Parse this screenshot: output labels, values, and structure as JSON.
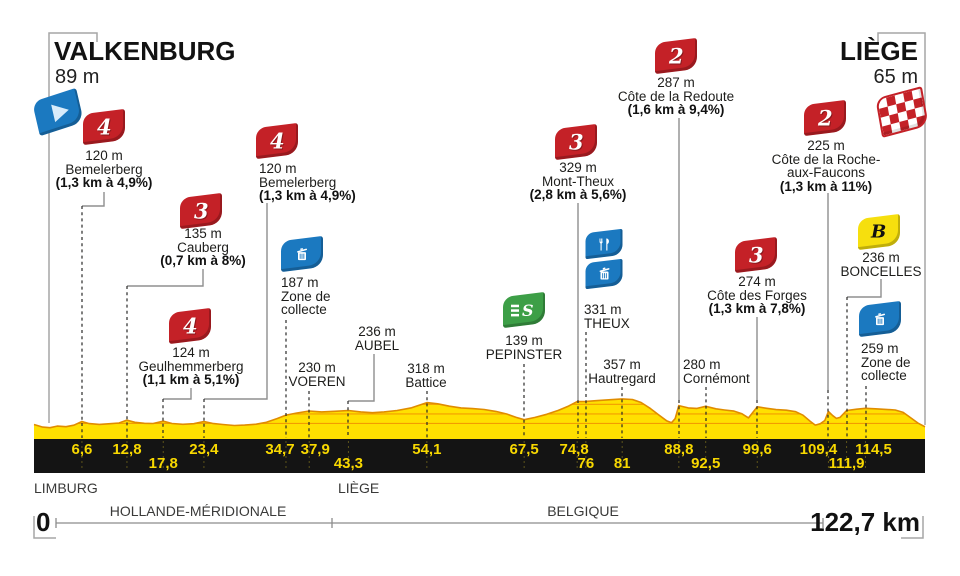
{
  "stage": {
    "start": {
      "name": "VALKENBURG",
      "elevation": "89 m"
    },
    "finish": {
      "name": "LIÈGE",
      "elevation": "65 m"
    },
    "origin_label": "0",
    "distance_label": "122,7 km"
  },
  "regions": [
    {
      "name": "LIMBURG"
    },
    {
      "name": "LIÈGE"
    }
  ],
  "countries": [
    {
      "name": "HOLLANDE-MÉRIDIONALE"
    },
    {
      "name": "BELGIQUE"
    }
  ],
  "colors": {
    "profile_yellow": "#ffe000",
    "profile_outline_orange": "#e08c00",
    "contour_orange": "#f39c00",
    "strip_black": "#141414",
    "km_text_yellow": "#f8d800",
    "climb_red": "#c42127",
    "info_blue": "#1b79c0",
    "sprint_green": "#3d9f47",
    "bonus_yellow": "#f6df0e"
  },
  "waypoints": [
    {
      "id": "start",
      "type": "start",
      "icon": "start-flag-icon",
      "km": 0,
      "km_label": "0"
    },
    {
      "id": "bemelerberg-1",
      "type": "climb",
      "category": "4",
      "km": 6.6,
      "km_label": "6,6",
      "lines": [
        "120 m",
        "Bemelerberg"
      ],
      "detail": "(1,3 km à 4,9%)"
    },
    {
      "id": "cauberg",
      "type": "climb",
      "category": "3",
      "km": 12.8,
      "km_label": "12,8",
      "lines": [
        "135 m",
        "Cauberg"
      ],
      "detail": "(0,7 km à 8%)"
    },
    {
      "id": "geulhemmerberg",
      "type": "climb",
      "category": "4",
      "km": 17.8,
      "km_label": "17,8",
      "lines": [
        "124 m",
        "Geulhemmerberg"
      ],
      "detail": "(1,1 km à 5,1%)"
    },
    {
      "id": "bemelerberg-2",
      "type": "climb",
      "category": "4",
      "km": 23.4,
      "km_label": "23,4",
      "lines": [
        "120 m",
        "Bemelerberg"
      ],
      "detail": "(1,3 km à 4,9%)"
    },
    {
      "id": "zone-collecte-1",
      "type": "collect",
      "icon": "trash-icon",
      "km": 34.7,
      "km_label": "34,7",
      "lines": [
        "187 m",
        "Zone de",
        "collecte"
      ]
    },
    {
      "id": "voeren",
      "type": "town",
      "km": 37.9,
      "km_label": "37,9",
      "lines": [
        "230 m",
        "VOEREN"
      ]
    },
    {
      "id": "aubel",
      "type": "town",
      "km": 43.3,
      "km_label": "43,3",
      "lines": [
        "236 m",
        "AUBEL"
      ]
    },
    {
      "id": "battice",
      "type": "town",
      "km": 54.1,
      "km_label": "54,1",
      "lines": [
        "318 m",
        "Battice"
      ]
    },
    {
      "id": "pepinster",
      "type": "sprint",
      "icon": "sprint-icon",
      "letter": "S",
      "km": 67.5,
      "km_label": "67,5",
      "lines": [
        "139 m",
        "PEPINSTER"
      ]
    },
    {
      "id": "mont-theux",
      "type": "climb",
      "category": "3",
      "km": 74.8,
      "km_label": "74,8",
      "lines": [
        "329 m",
        "Mont-Theux"
      ],
      "detail": "(2,8 km à 5,6%)"
    },
    {
      "id": "theux",
      "type": "feed",
      "icons": [
        "restaurant-icon",
        "trash-icon"
      ],
      "km": 76,
      "km_label": "76",
      "lines": [
        "331 m",
        "THEUX"
      ]
    },
    {
      "id": "hautregard",
      "type": "town",
      "km": 81,
      "km_label": "81",
      "lines": [
        "357 m",
        "Hautregard"
      ]
    },
    {
      "id": "cote-de-la-redoute",
      "type": "climb",
      "category": "2",
      "km": 88.8,
      "km_label": "88,8",
      "lines": [
        "287 m",
        "Côte de la Redoute"
      ],
      "detail": "(1,6 km à 9,4%)"
    },
    {
      "id": "cornemont",
      "type": "town",
      "km": 92.5,
      "km_label": "92,5",
      "lines": [
        "280 m",
        "Cornémont"
      ]
    },
    {
      "id": "cote-des-forges",
      "type": "climb",
      "category": "3",
      "km": 99.6,
      "km_label": "99,6",
      "lines": [
        "274 m",
        "Côte des Forges"
      ],
      "detail": "(1,3 km à 7,8%)"
    },
    {
      "id": "cote-de-la-roche-aux-faucons",
      "type": "climb",
      "category": "2",
      "km": 109.4,
      "km_label": "109,4",
      "lines": [
        "225 m",
        "Côte de la Roche-",
        "aux-Faucons"
      ],
      "detail": "(1,3 km à 11%)"
    },
    {
      "id": "boncelles",
      "type": "bonus",
      "letter": "B",
      "km": 111.9,
      "km_label": "111,9",
      "lines": [
        "236 m",
        "BONCELLES"
      ]
    },
    {
      "id": "zone-collecte-2",
      "type": "collect",
      "icon": "trash-icon",
      "km": 114.5,
      "km_label": "114,5",
      "lines": [
        "259 m",
        "Zone de",
        "collecte"
      ]
    },
    {
      "id": "finish",
      "type": "finish",
      "icon": "checkered-flag-icon",
      "km": 122.7,
      "km_label": "122,7"
    }
  ],
  "chart_data": {
    "type": "area",
    "title": "Valkenburg - Liège stage elevation profile",
    "xlabel": "km",
    "ylabel": "m",
    "x_range": [
      0,
      122.7
    ],
    "total_km": 122.7,
    "contour_lines_m": [
      100,
      200,
      300
    ],
    "start_elevation_m": 89,
    "finish_elevation_m": 65,
    "max_elevation_m": 357,
    "points": [
      [
        0,
        89
      ],
      [
        1.2,
        62
      ],
      [
        2.2,
        56
      ],
      [
        3.2,
        72
      ],
      [
        4.4,
        66
      ],
      [
        5.5,
        82
      ],
      [
        6.6,
        120
      ],
      [
        7.6,
        98
      ],
      [
        9,
        90
      ],
      [
        10.5,
        97
      ],
      [
        11.7,
        105
      ],
      [
        12.8,
        135
      ],
      [
        13.9,
        112
      ],
      [
        15.2,
        102
      ],
      [
        16.4,
        99
      ],
      [
        17.8,
        124
      ],
      [
        19,
        99
      ],
      [
        20.5,
        91
      ],
      [
        22,
        97
      ],
      [
        23.4,
        120
      ],
      [
        24.6,
        101
      ],
      [
        26,
        89
      ],
      [
        27.6,
        79
      ],
      [
        29,
        83
      ],
      [
        30.6,
        92
      ],
      [
        32,
        112
      ],
      [
        33.5,
        152
      ],
      [
        34.7,
        187
      ],
      [
        36.2,
        209
      ],
      [
        37.9,
        230
      ],
      [
        39.6,
        221
      ],
      [
        41.4,
        227
      ],
      [
        43.3,
        236
      ],
      [
        45,
        221
      ],
      [
        46.6,
        213
      ],
      [
        48.2,
        221
      ],
      [
        50,
        236
      ],
      [
        52,
        264
      ],
      [
        54.1,
        318
      ],
      [
        55.6,
        306
      ],
      [
        57.2,
        281
      ],
      [
        58.8,
        263
      ],
      [
        60.4,
        255
      ],
      [
        62,
        246
      ],
      [
        63.6,
        226
      ],
      [
        65.1,
        199
      ],
      [
        66.4,
        163
      ],
      [
        67.5,
        139
      ],
      [
        69,
        163
      ],
      [
        70.6,
        196
      ],
      [
        72.2,
        237
      ],
      [
        73.6,
        282
      ],
      [
        74.8,
        329
      ],
      [
        76,
        331
      ],
      [
        77.6,
        339
      ],
      [
        79.4,
        349
      ],
      [
        81,
        357
      ],
      [
        82.4,
        351
      ],
      [
        83.6,
        319
      ],
      [
        84.9,
        256
      ],
      [
        86.1,
        186
      ],
      [
        87.1,
        129
      ],
      [
        87.8,
        108
      ],
      [
        88.3,
        152
      ],
      [
        88.8,
        287
      ],
      [
        90.1,
        263
      ],
      [
        91.3,
        258
      ],
      [
        92.5,
        280
      ],
      [
        93.9,
        253
      ],
      [
        95.1,
        241
      ],
      [
        96.4,
        229
      ],
      [
        97.5,
        201
      ],
      [
        98.4,
        158
      ],
      [
        99.6,
        274
      ],
      [
        100.9,
        259
      ],
      [
        102.2,
        245
      ],
      [
        103.6,
        239
      ],
      [
        104.9,
        223
      ],
      [
        105.9,
        186
      ],
      [
        106.9,
        121
      ],
      [
        107.6,
        83
      ],
      [
        108.3,
        97
      ],
      [
        108.9,
        131
      ],
      [
        109.4,
        225
      ],
      [
        110,
        181
      ],
      [
        110.5,
        153
      ],
      [
        111,
        163
      ],
      [
        111.9,
        236
      ],
      [
        113.3,
        249
      ],
      [
        114.5,
        259
      ],
      [
        115.9,
        253
      ],
      [
        117.3,
        247
      ],
      [
        118.6,
        241
      ],
      [
        119.7,
        216
      ],
      [
        120.7,
        161
      ],
      [
        121.7,
        106
      ],
      [
        122.7,
        65
      ]
    ]
  }
}
